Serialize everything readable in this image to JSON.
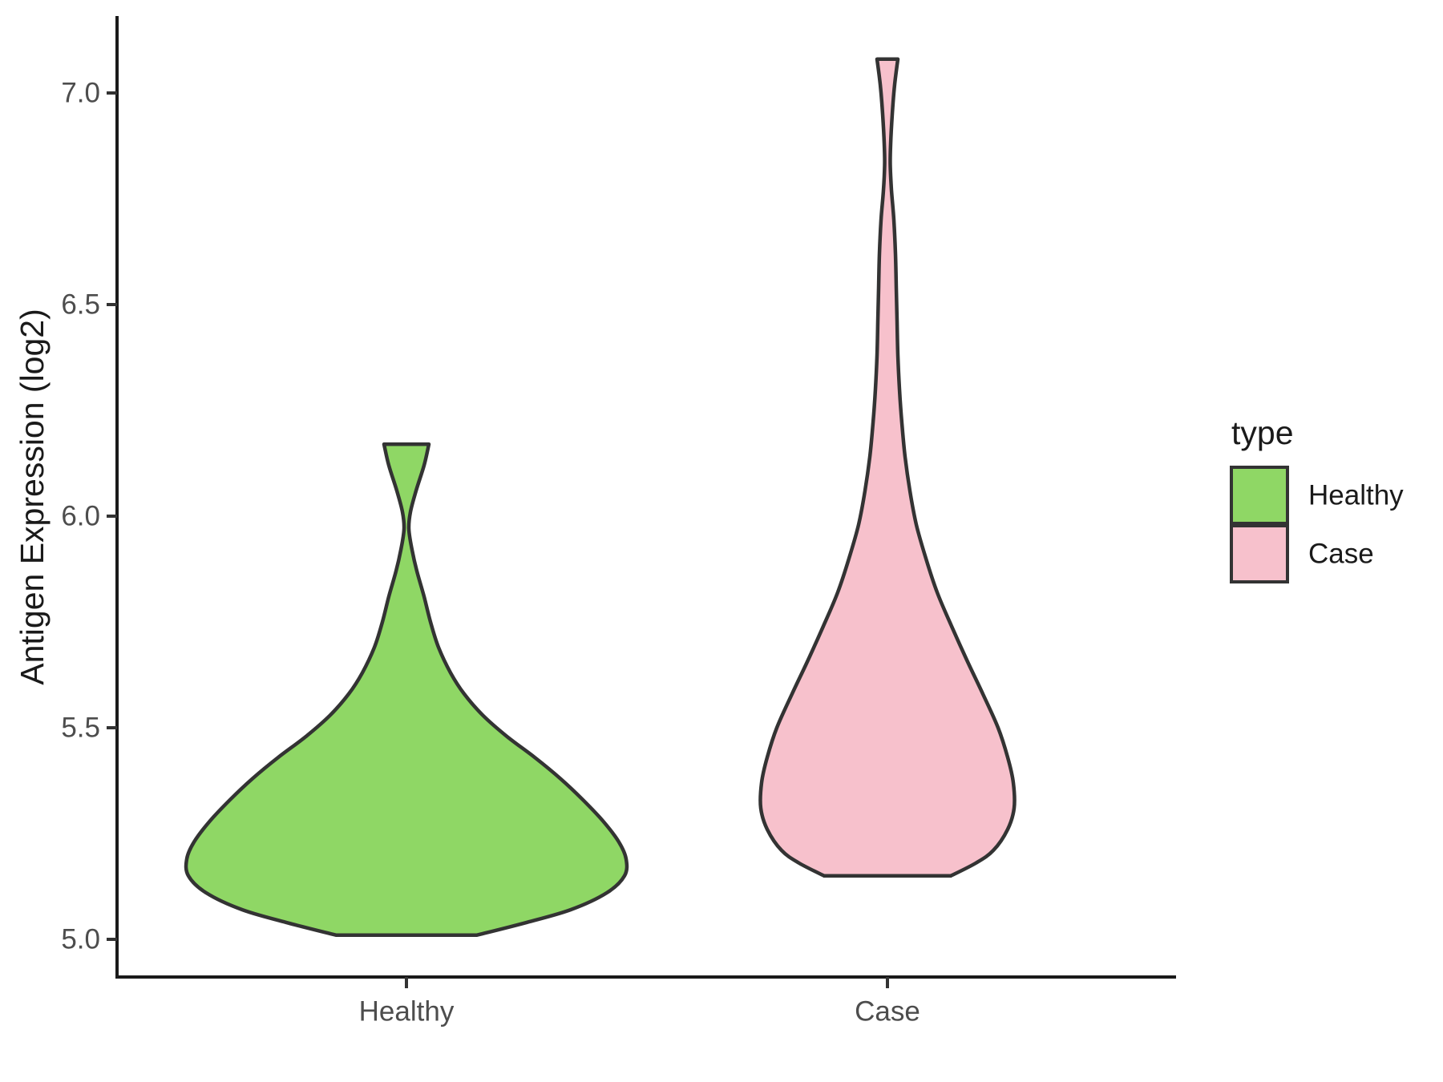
{
  "chart_data": {
    "type": "violin",
    "title": "",
    "xlabel": "",
    "ylabel": "Antigen Expression (log2)",
    "categories": [
      "Healthy",
      "Case"
    ],
    "y_ticks": [
      {
        "value": 5.0,
        "label": "5.0"
      },
      {
        "value": 5.5,
        "label": "5.5"
      },
      {
        "value": 6.0,
        "label": "6.0"
      },
      {
        "value": 6.5,
        "label": "6.5"
      },
      {
        "value": 7.0,
        "label": "7.0"
      }
    ],
    "ylim": [
      4.91,
      7.18
    ],
    "grid": false,
    "legend_position": "right",
    "legend": {
      "title": "type",
      "entries": [
        {
          "label": "Healthy",
          "color": "#8FD765"
        },
        {
          "label": "Case",
          "color": "#F7C1CC"
        }
      ]
    },
    "series": [
      {
        "name": "Healthy",
        "color": "#8FD765",
        "outline_color": "#333333",
        "min_value": 5.01,
        "max_value": 6.17,
        "profile": [
          [
            6.17,
            28
          ],
          [
            6.12,
            22
          ],
          [
            6.06,
            12
          ],
          [
            6.01,
            5
          ],
          [
            5.97,
            3
          ],
          [
            5.92,
            7
          ],
          [
            5.87,
            13
          ],
          [
            5.81,
            22
          ],
          [
            5.75,
            30
          ],
          [
            5.69,
            40
          ],
          [
            5.63,
            55
          ],
          [
            5.58,
            72
          ],
          [
            5.53,
            95
          ],
          [
            5.48,
            125
          ],
          [
            5.43,
            160
          ],
          [
            5.38,
            192
          ],
          [
            5.33,
            220
          ],
          [
            5.28,
            245
          ],
          [
            5.23,
            265
          ],
          [
            5.19,
            274
          ],
          [
            5.15,
            272
          ],
          [
            5.11,
            250
          ],
          [
            5.07,
            205
          ],
          [
            5.04,
            150
          ],
          [
            5.01,
            88
          ]
        ]
      },
      {
        "name": "Case",
        "color": "#F7C1CC",
        "outline_color": "#333333",
        "min_value": 5.15,
        "max_value": 7.08,
        "profile": [
          [
            7.08,
            13
          ],
          [
            7.02,
            9
          ],
          [
            6.95,
            6
          ],
          [
            6.88,
            4
          ],
          [
            6.83,
            3.5
          ],
          [
            6.77,
            5
          ],
          [
            6.7,
            8
          ],
          [
            6.62,
            10
          ],
          [
            6.54,
            11
          ],
          [
            6.46,
            12
          ],
          [
            6.38,
            13
          ],
          [
            6.3,
            15
          ],
          [
            6.22,
            18
          ],
          [
            6.14,
            22
          ],
          [
            6.06,
            28
          ],
          [
            5.98,
            36
          ],
          [
            5.9,
            48
          ],
          [
            5.82,
            62
          ],
          [
            5.74,
            80
          ],
          [
            5.66,
            99
          ],
          [
            5.58,
            119
          ],
          [
            5.5,
            138
          ],
          [
            5.43,
            150
          ],
          [
            5.37,
            157
          ],
          [
            5.31,
            158
          ],
          [
            5.26,
            150
          ],
          [
            5.21,
            132
          ],
          [
            5.18,
            110
          ],
          [
            5.15,
            79
          ]
        ]
      }
    ]
  }
}
